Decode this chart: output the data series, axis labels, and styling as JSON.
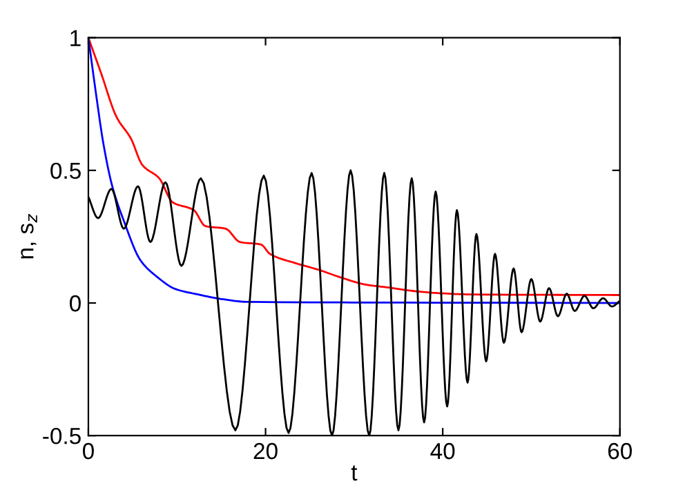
{
  "chart_data": {
    "type": "line",
    "xlabel": "t",
    "ylabel": "n, s$_{z}$",
    "xlim": [
      0,
      60
    ],
    "ylim": [
      -0.5,
      1
    ],
    "xticks": [
      0,
      20,
      40,
      60
    ],
    "yticks": [
      -0.5,
      0,
      0.5,
      1
    ],
    "grid": false,
    "legend": false,
    "line_style": "solid",
    "marker": "none",
    "series": [
      {
        "color": "#ff0000",
        "x": [
          0,
          1.4,
          3.2,
          4.8,
          6.1,
          8.0,
          9.5,
          11.9,
          13.2,
          15.5,
          17.1,
          19.5,
          20.5,
          23.4,
          26.0,
          28.6,
          31.2,
          33.9,
          37.0,
          39.6,
          43.3,
          60
        ],
        "values": [
          1.0,
          0.87,
          0.7,
          0.62,
          0.52,
          0.47,
          0.38,
          0.35,
          0.29,
          0.28,
          0.23,
          0.22,
          0.185,
          0.15,
          0.125,
          0.095,
          0.07,
          0.058,
          0.044,
          0.037,
          0.032,
          0.03
        ]
      },
      {
        "color": "#0000ff",
        "x": [
          0,
          0.9,
          1.7,
          2.7,
          4.0,
          5.9,
          7.7,
          9.8,
          12.4,
          15.0,
          18.1,
          60
        ],
        "values": [
          1.0,
          0.78,
          0.6,
          0.44,
          0.31,
          0.16,
          0.1,
          0.053,
          0.032,
          0.015,
          0.004,
          0
        ]
      },
      {
        "color": "#000000",
        "x": [
          0,
          1.1,
          2.6,
          4.0,
          5.6,
          7.0,
          8.7,
          10.5,
          12.7,
          16.6,
          19.8,
          22.6,
          25.2,
          27.5,
          29.6,
          31.7,
          33.4,
          35.0,
          36.5,
          37.9,
          39.2,
          40.5,
          41.6,
          42.8,
          43.8,
          44.9,
          45.9,
          46.9,
          48.0,
          48.9,
          50.0,
          51.0,
          52.0,
          53.0,
          54.0,
          54.9,
          56.0,
          57.0,
          58.1,
          59.1,
          60
        ],
        "values": [
          0.4,
          0.32,
          0.43,
          0.28,
          0.44,
          0.23,
          0.455,
          0.14,
          0.47,
          -0.48,
          0.48,
          -0.49,
          0.49,
          -0.5,
          0.5,
          -0.5,
          0.49,
          -0.48,
          0.47,
          -0.45,
          0.42,
          -0.39,
          0.35,
          -0.3,
          0.26,
          -0.22,
          0.185,
          -0.15,
          0.13,
          -0.11,
          0.09,
          -0.07,
          0.056,
          -0.05,
          0.035,
          -0.03,
          0.027,
          -0.02,
          0.018,
          -0.013,
          0.008
        ]
      }
    ]
  }
}
